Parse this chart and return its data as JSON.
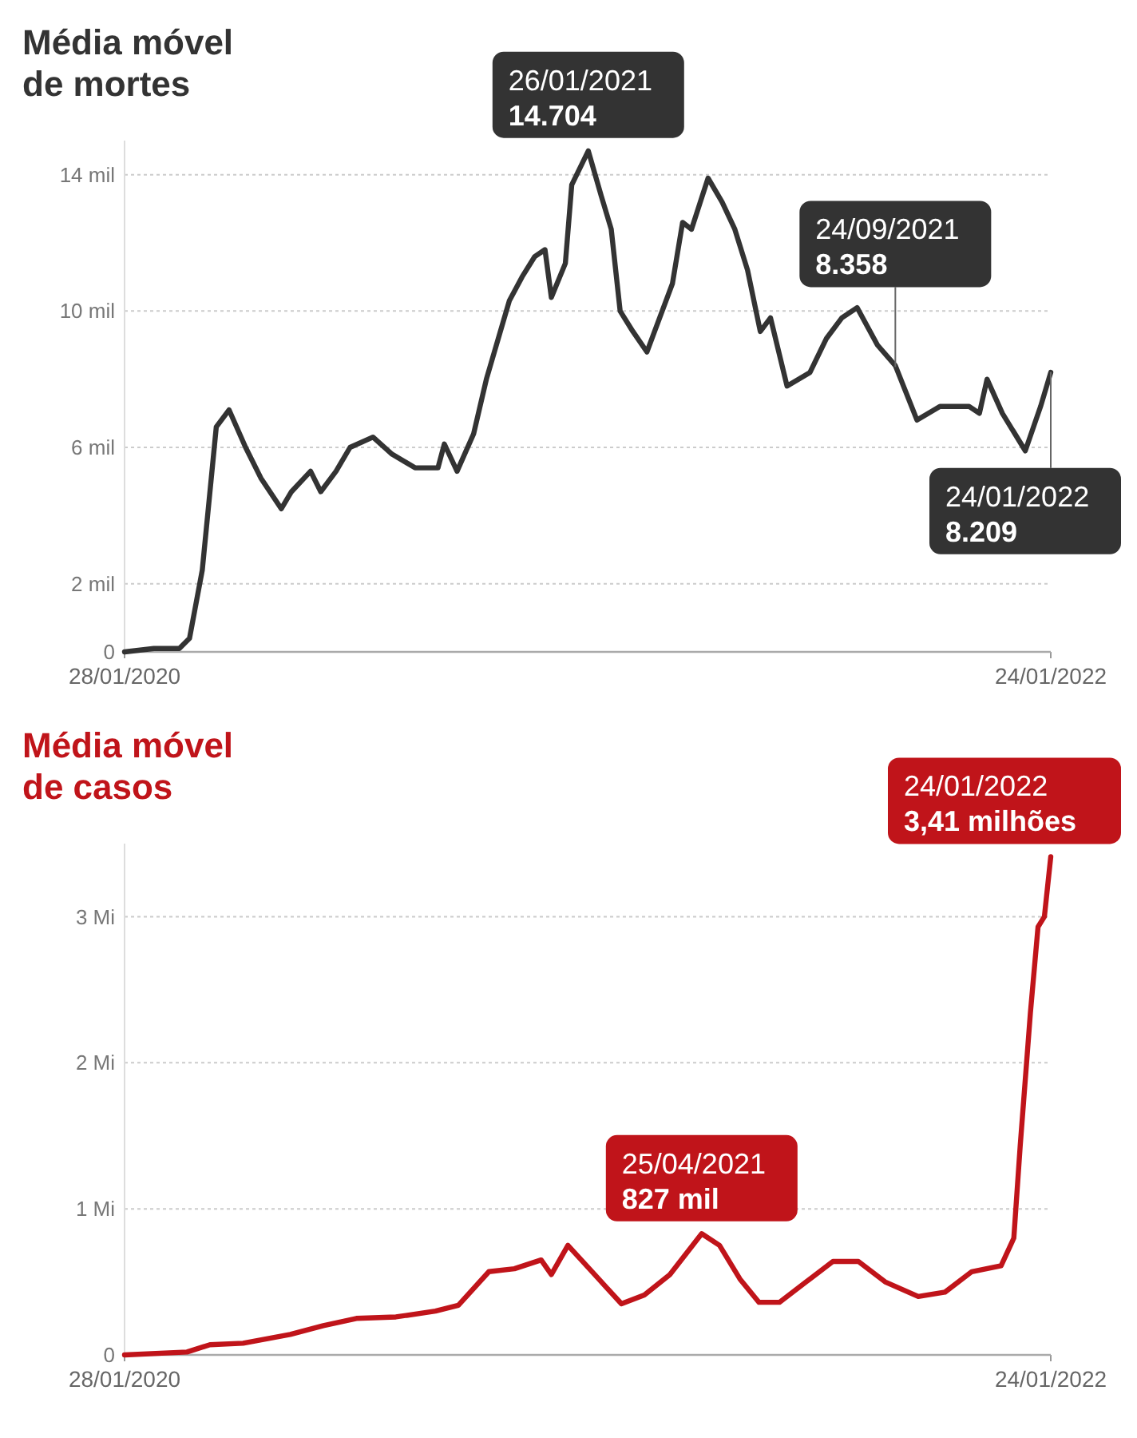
{
  "chart_data": [
    {
      "type": "line",
      "title": "Média móvel de mortes",
      "xlim": [
        "2020-01-28",
        "2022-01-24"
      ],
      "xticks": [
        {
          "value": "2020-01-28",
          "label": "28/01/2020"
        },
        {
          "value": "2022-01-24",
          "label": "24/01/2022"
        }
      ],
      "ylim": [
        0,
        15
      ],
      "yticks": [
        0,
        {
          "value": 2,
          "label": "2 mil"
        },
        {
          "value": 6,
          "label": "6 mil"
        },
        {
          "value": 10,
          "label": "10 mil"
        },
        {
          "value": 14,
          "label": "14 mil"
        }
      ],
      "grid": "y",
      "marker": "none",
      "line_style": "solid",
      "series": [
        {
          "color": "#333333",
          "x": [
            "2020-01-28",
            "2020-02-20",
            "2020-03-11",
            "2020-03-19",
            "2020-03-29",
            "2020-04-09",
            "2020-04-19",
            "2020-05-02",
            "2020-05-14",
            "2020-05-30",
            "2020-06-07",
            "2020-06-22",
            "2020-06-30",
            "2020-07-12",
            "2020-07-23",
            "2020-08-10",
            "2020-08-25",
            "2020-09-12",
            "2020-09-30",
            "2020-10-05",
            "2020-10-15",
            "2020-10-28",
            "2020-11-07",
            "2020-11-25",
            "2020-12-05",
            "2020-12-15",
            "2020-12-23",
            "2020-12-28",
            "2021-01-08",
            "2021-01-13",
            "2021-01-26",
            "2021-02-05",
            "2021-02-13",
            "2021-02-20",
            "2021-03-02",
            "2021-03-13",
            "2021-03-23",
            "2021-04-02",
            "2021-04-10",
            "2021-04-17",
            "2021-04-30",
            "2021-05-11",
            "2021-05-21",
            "2021-05-31",
            "2021-06-10",
            "2021-06-18",
            "2021-07-01",
            "2021-07-19",
            "2021-08-01",
            "2021-08-13",
            "2021-08-25",
            "2021-09-10",
            "2021-09-24",
            "2021-10-11",
            "2021-10-29",
            "2021-11-21",
            "2021-11-29",
            "2021-12-05",
            "2021-12-17",
            "2022-01-04",
            "2022-01-16",
            "2022-01-24"
          ],
          "values": [
            0,
            0.1,
            0.1,
            0.4,
            2.4,
            6.6,
            7.1,
            6.0,
            5.1,
            4.2,
            4.7,
            5.3,
            4.7,
            5.3,
            6.0,
            6.3,
            5.8,
            5.4,
            5.4,
            6.1,
            5.3,
            6.4,
            8.0,
            10.3,
            11.0,
            11.6,
            11.8,
            10.4,
            11.4,
            13.7,
            14.7,
            13.4,
            12.4,
            10.0,
            9.4,
            8.8,
            9.8,
            10.8,
            12.6,
            12.4,
            13.9,
            13.2,
            12.4,
            11.2,
            9.4,
            9.8,
            7.8,
            8.2,
            9.2,
            9.8,
            10.1,
            9.0,
            8.4,
            6.8,
            7.2,
            7.2,
            7.0,
            8.0,
            7.0,
            5.9,
            7.2,
            8.2
          ]
        }
      ],
      "annotations": [
        {
          "text": "26/01/2021\n14.704",
          "x": "2021-01-26",
          "y": 14.704
        },
        {
          "text": "24/09/2021\n8.358",
          "x": "2021-09-24",
          "y": 8.358
        },
        {
          "text": "24/01/2022\n8.209",
          "x": "2022-01-24",
          "y": 8.209
        }
      ]
    },
    {
      "type": "line",
      "title": "Média móvel de casos",
      "xlim": [
        "2020-01-28",
        "2022-01-24"
      ],
      "xticks": [
        {
          "value": "2020-01-28",
          "label": "28/01/2020"
        },
        {
          "value": "2022-01-24",
          "label": "24/01/2022"
        }
      ],
      "ylim": [
        0,
        3.5
      ],
      "yticks": [
        0,
        {
          "value": 1,
          "label": "1 Mi"
        },
        {
          "value": 2,
          "label": "2 Mi"
        },
        {
          "value": 3,
          "label": "3 Mi"
        }
      ],
      "grid": "y",
      "marker": "none",
      "line_style": "solid",
      "series": [
        {
          "color": "#c0141a",
          "x": [
            "2020-01-28",
            "2020-03-17",
            "2020-04-04",
            "2020-04-30",
            "2020-06-06",
            "2020-07-02",
            "2020-07-28",
            "2020-08-28",
            "2020-09-28",
            "2020-10-16",
            "2020-11-09",
            "2020-11-29",
            "2020-12-20",
            "2020-12-28",
            "2021-01-10",
            "2021-01-31",
            "2021-02-21",
            "2021-03-11",
            "2021-03-31",
            "2021-04-25",
            "2021-05-09",
            "2021-05-25",
            "2021-06-09",
            "2021-06-25",
            "2021-07-16",
            "2021-08-06",
            "2021-08-26",
            "2021-09-16",
            "2021-10-12",
            "2021-11-02",
            "2021-11-23",
            "2021-12-16",
            "2021-12-26",
            "2021-12-31",
            "2022-01-08",
            "2022-01-14",
            "2022-01-19",
            "2022-01-24"
          ],
          "values": [
            0,
            0.02,
            0.07,
            0.08,
            0.14,
            0.2,
            0.25,
            0.26,
            0.3,
            0.34,
            0.57,
            0.59,
            0.65,
            0.55,
            0.75,
            0.55,
            0.35,
            0.41,
            0.55,
            0.83,
            0.75,
            0.52,
            0.36,
            0.36,
            0.5,
            0.64,
            0.64,
            0.5,
            0.4,
            0.43,
            0.57,
            0.61,
            0.8,
            1.43,
            2.34,
            2.93,
            3.0,
            3.41
          ]
        }
      ],
      "annotations": [
        {
          "text": "25/04/2021\n827 mil",
          "x": "2021-04-25",
          "y": 0.827
        },
        {
          "text": "24/01/2022\n3,41 milhões",
          "x": "2022-01-24",
          "y": 3.41
        }
      ]
    }
  ]
}
